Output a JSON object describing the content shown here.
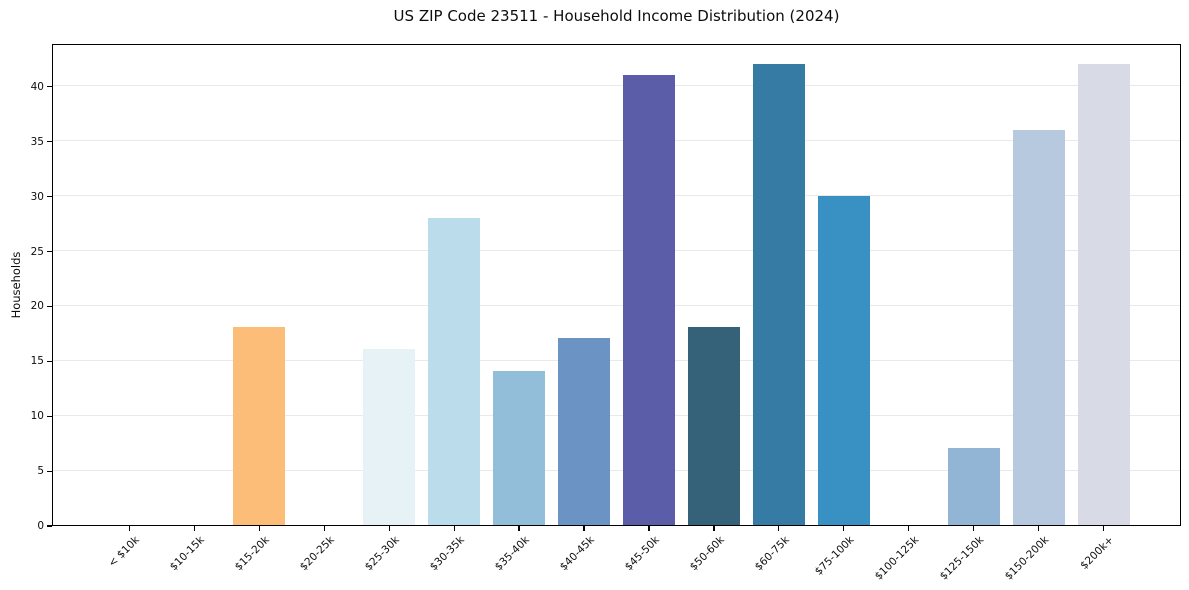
{
  "chart_data": {
    "type": "bar",
    "title": "US ZIP Code 23511 - Household Income Distribution (2024)",
    "xlabel": "",
    "ylabel": "Households",
    "categories": [
      "< $10k",
      "$10-15k",
      "$15-20k",
      "$20-25k",
      "$25-30k",
      "$30-35k",
      "$35-40k",
      "$40-45k",
      "$45-50k",
      "$50-60k",
      "$60-75k",
      "$75-100k",
      "$100-125k",
      "$125-150k",
      "$150-200k",
      "$200k+"
    ],
    "values": [
      0,
      0,
      18,
      0,
      16,
      28,
      14,
      17,
      41,
      18,
      42,
      30,
      0,
      7,
      36,
      42
    ],
    "bar_colors": [
      null,
      null,
      "#FBBD78",
      null,
      "#E7F2F7",
      "#BBDCEB",
      "#93BEDA",
      "#6B93C4",
      "#5C5DA9",
      "#356179",
      "#357BA3",
      "#3990C2",
      null,
      "#92B5D6",
      "#B6C9DE",
      "#D8DAE6"
    ],
    "y_ticks": [
      0,
      5,
      10,
      15,
      20,
      25,
      30,
      35,
      40
    ],
    "ylim": [
      0,
      43.9
    ],
    "grid": "horizontal",
    "grid_color": "#e9e9e9",
    "background_color": "#ffffff",
    "legend": "none"
  }
}
